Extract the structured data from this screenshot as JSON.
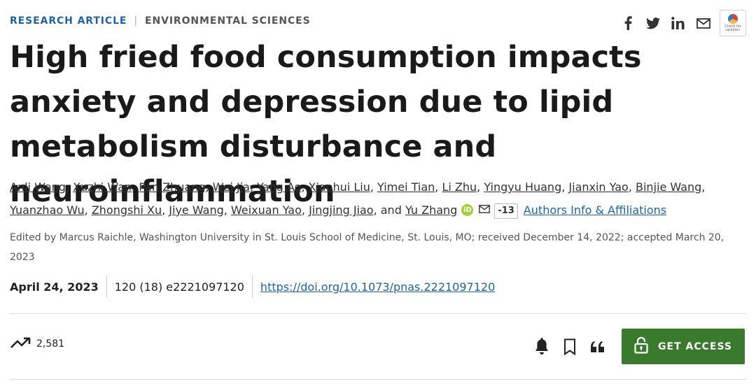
{
  "header": {
    "category_primary": "RESEARCH ARTICLE",
    "separator": "|",
    "category_secondary": "ENVIRONMENTAL SCIENCES",
    "share_icons": [
      "facebook-icon",
      "twitter-icon",
      "linkedin-icon",
      "mail-icon"
    ],
    "check_for_updates": "Check for updates"
  },
  "article": {
    "title": "High fried food consumption impacts anxiety and depression due to lipid metabolism disturbance and neuroinflammation",
    "authors": [
      "Anli Wang",
      "Xuzhi Wan",
      "Pan Zhuang",
      "Wei Jia",
      "Yang Ao",
      "Xiaohui Liu",
      "Yimei Tian",
      "Li Zhu",
      "Yingyu Huang",
      "Jianxin Yao",
      "Binjie Wang",
      "Yuanzhao Wu",
      "Zhongshi Xu",
      "Jiye Wang",
      "Weixuan Yao",
      "Jingjing Jiao"
    ],
    "author_and": "and",
    "last_author": "Yu Zhang",
    "orcid_label": "iD",
    "more_authors": "-13",
    "affiliations_link": "Authors Info & Affiliations",
    "edited_by": "Edited by Marcus Raichle, Washington University in St. Louis School of Medicine, St. Louis, MO; received December 14, 2022; accepted March 20, 2023",
    "pub_date": "April 24, 2023",
    "volume_issue": "120 (18) e2221097120",
    "doi": "https://doi.org/10.1073/pnas.2221097120"
  },
  "metrics": {
    "views": "2,581"
  },
  "actions": {
    "get_access": "GET ACCESS"
  },
  "colors": {
    "accent_blue": "#1f63a8",
    "access_green": "#3a7a2c"
  }
}
